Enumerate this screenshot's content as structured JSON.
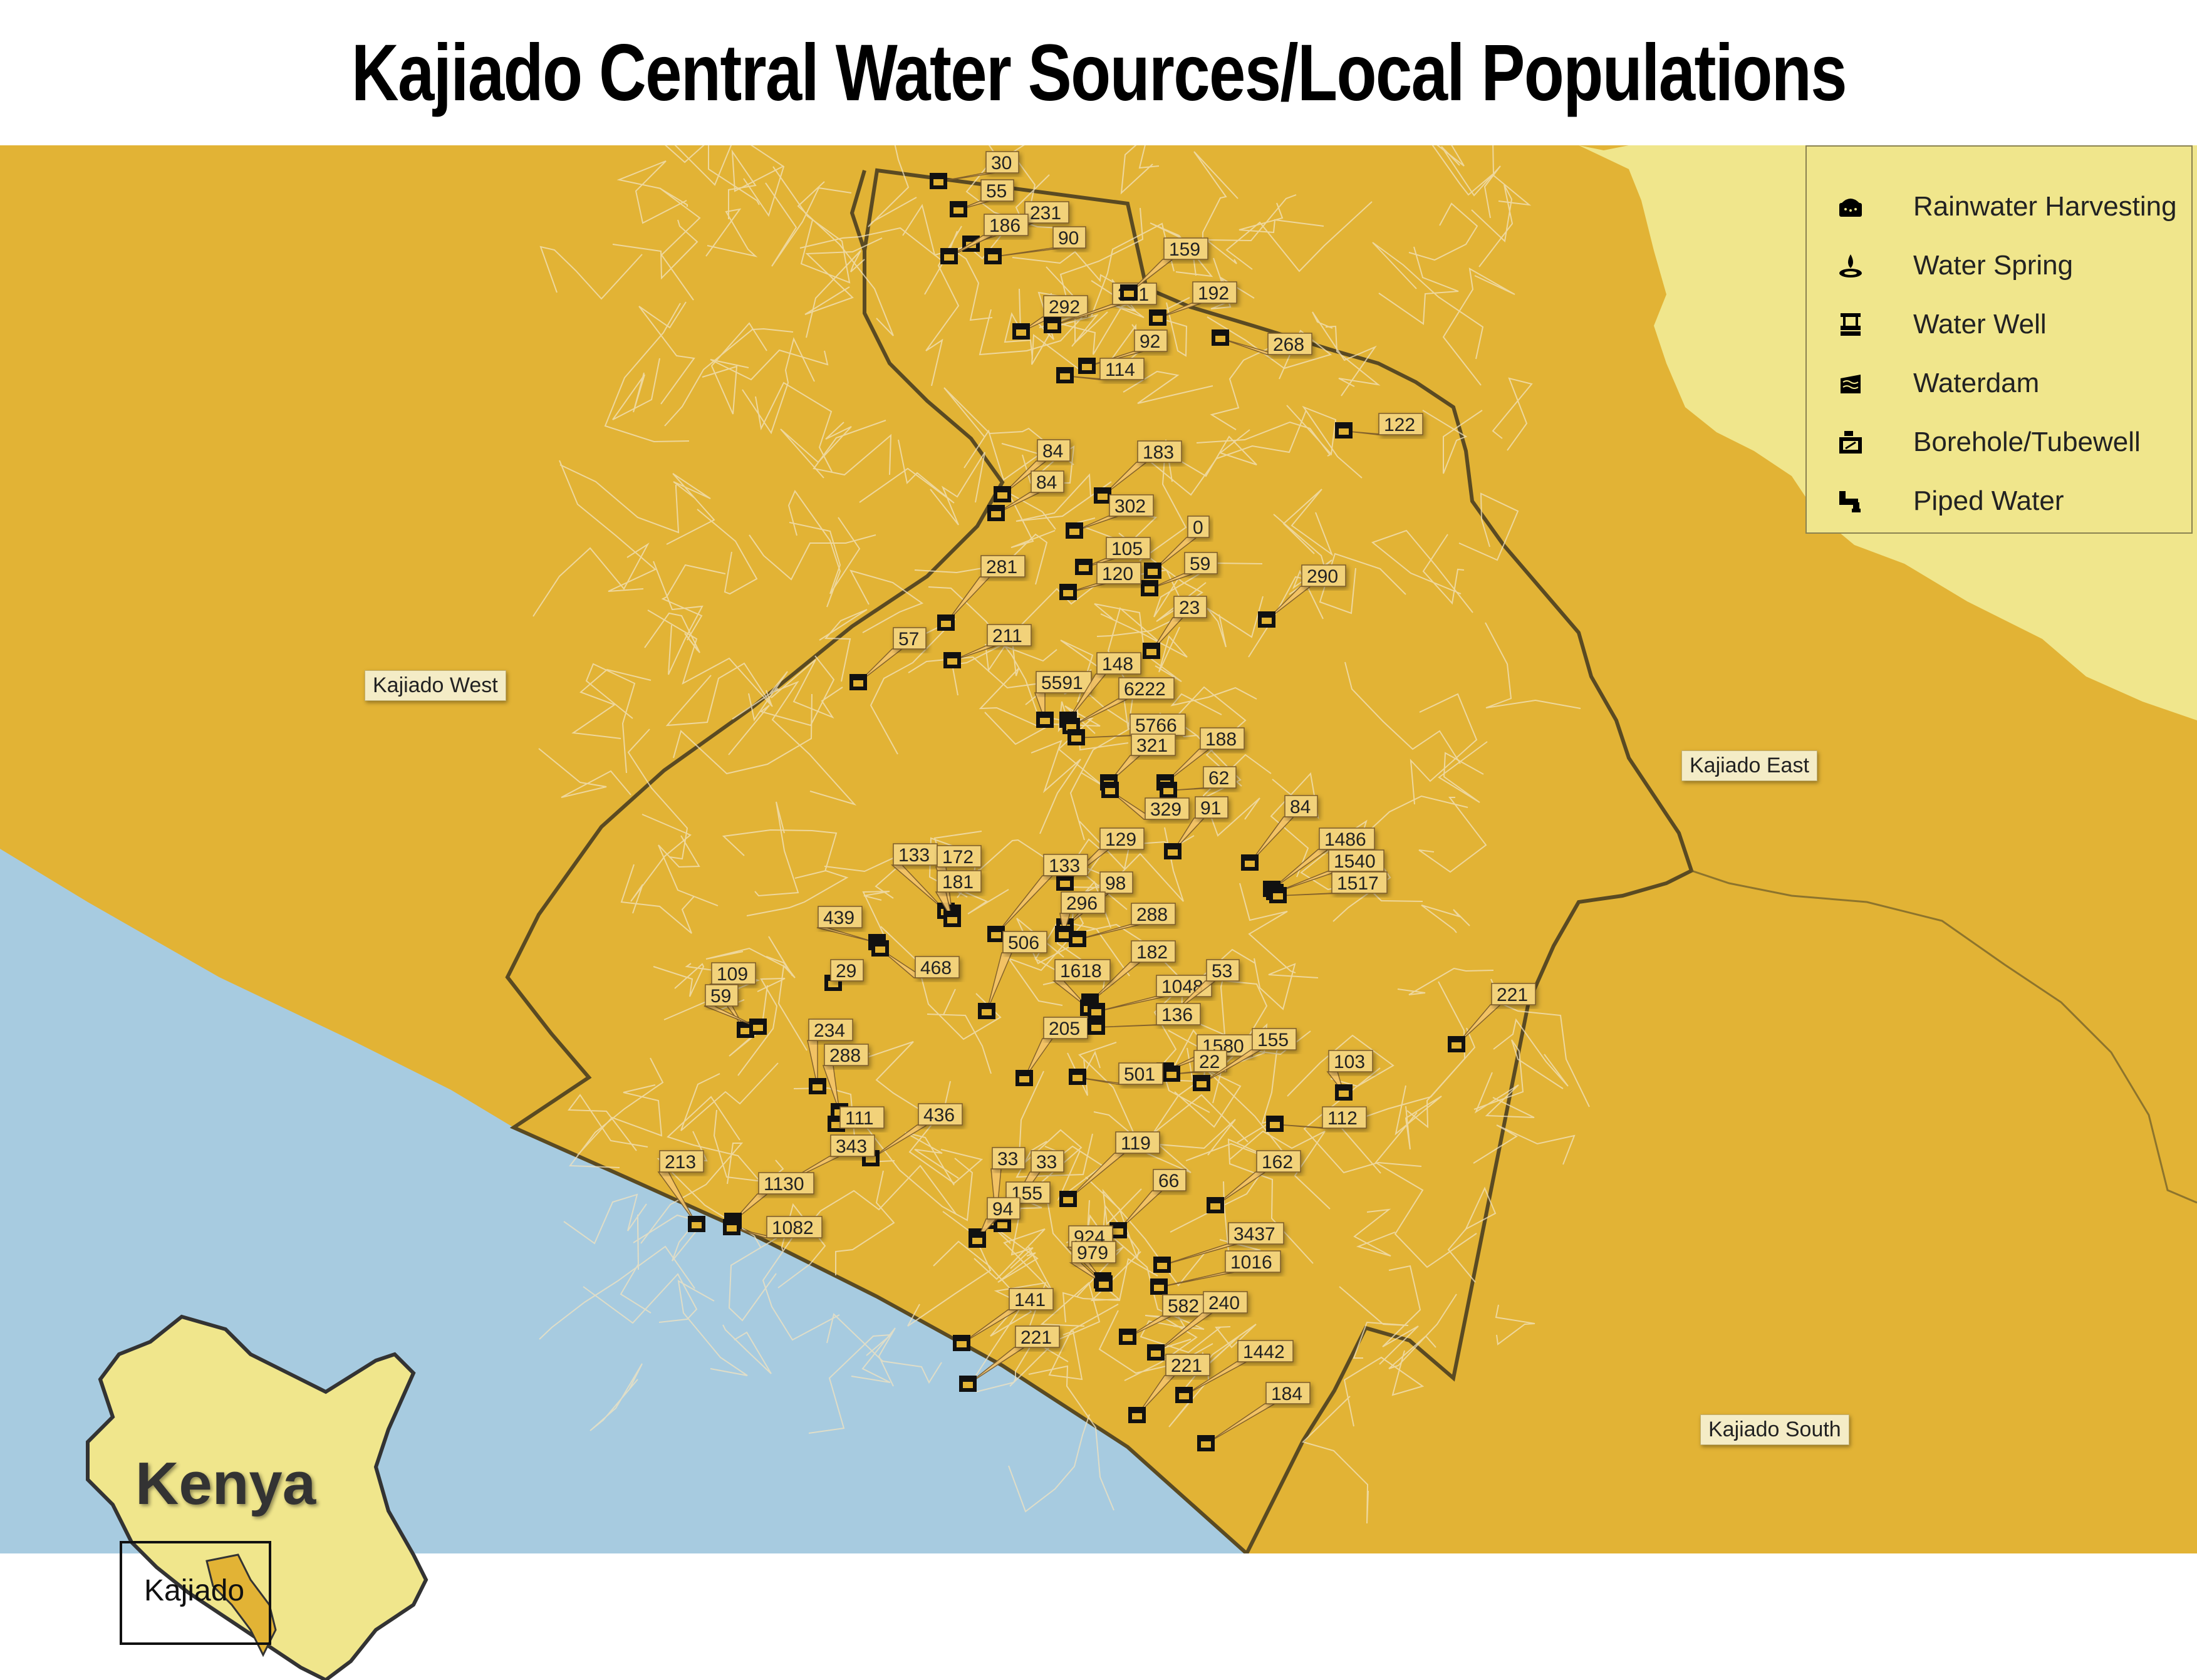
{
  "title": "Kajiado Central Water Sources/Local Populations",
  "colors": {
    "background_region": "#e2b335",
    "ocean_like_area": "#a7cbe0",
    "east_region": "#f0e68c",
    "boundary": "#5a4a22",
    "roads": "#f2e4c0",
    "legend_bg": "#f0e68c"
  },
  "regions": {
    "kajiado_west": "Kajiado West",
    "kajiado_east": "Kajiado East",
    "kajiado_south": "Kajiado South"
  },
  "legend": [
    {
      "icon": "rainwater-harvesting-icon",
      "label": "Rainwater Harvesting"
    },
    {
      "icon": "water-spring-icon",
      "label": "Water Spring"
    },
    {
      "icon": "water-well-icon",
      "label": "Water Well"
    },
    {
      "icon": "waterdam-icon",
      "label": "Waterdam"
    },
    {
      "icon": "borehole-tubewell-icon",
      "label": "Borehole/Tubewell"
    },
    {
      "icon": "piped-water-icon",
      "label": "Piped Water"
    }
  ],
  "inset": {
    "country": "Kenya",
    "county": "Kajiado"
  },
  "population_labels": [
    "30",
    "55",
    "231",
    "186",
    "90",
    "292",
    "331",
    "92",
    "114",
    "159",
    "192",
    "268",
    "122",
    "84",
    "84",
    "183",
    "302",
    "0",
    "105",
    "59",
    "120",
    "290",
    "281",
    "211",
    "23",
    "57",
    "5591",
    "148",
    "6222",
    "5766",
    "321",
    "188",
    "62",
    "329",
    "91",
    "84",
    "1486",
    "1540",
    "1517",
    "129",
    "133",
    "172",
    "181",
    "133",
    "98",
    "296",
    "439",
    "288",
    "468",
    "506",
    "182",
    "1618",
    "1048",
    "53",
    "109",
    "29",
    "59",
    "234",
    "288",
    "111",
    "205",
    "136",
    "1580",
    "22",
    "155",
    "501",
    "221",
    "103",
    "112",
    "436",
    "343",
    "213",
    "1130",
    "1082",
    "162",
    "33",
    "33",
    "119",
    "66",
    "155",
    "94",
    "3437",
    "924",
    "1016",
    "979",
    "582",
    "240",
    "141",
    "221",
    "221",
    "1442",
    "184"
  ]
}
